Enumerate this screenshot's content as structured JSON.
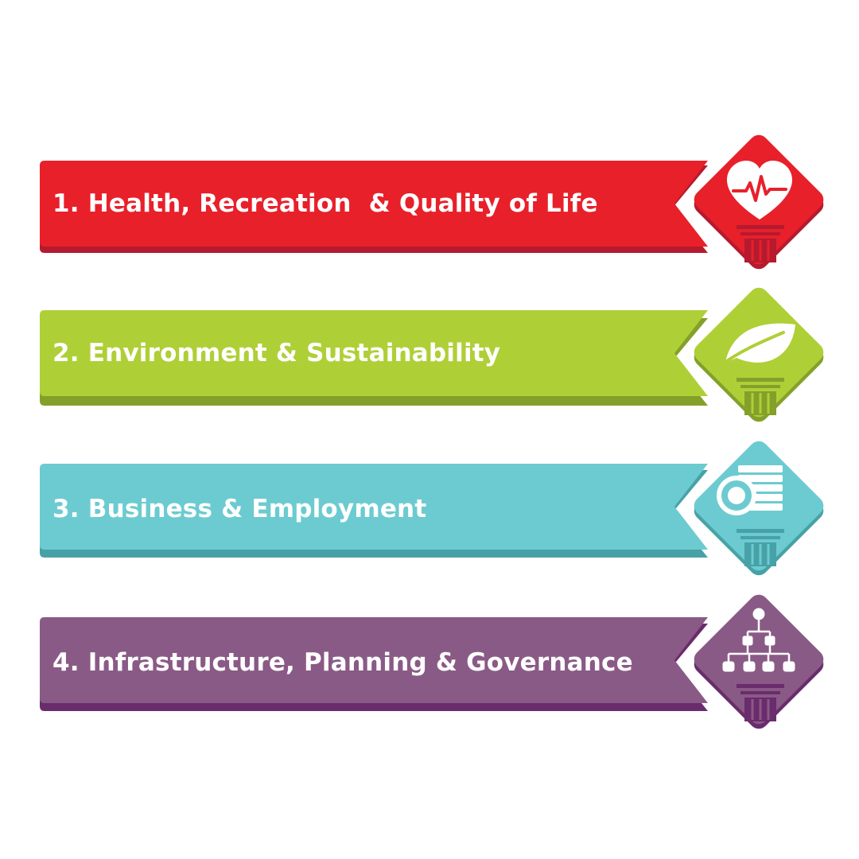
{
  "pillars": [
    {
      "label": "1. Health, Recreation  & Quality of Life",
      "icon": "heart-pulse-icon",
      "color": "#e8202a",
      "dark": "#b51a2e"
    },
    {
      "label": "2. Environment & Sustainability",
      "icon": "leaf-icon",
      "color": "#afcf37",
      "dark": "#84a02a"
    },
    {
      "label": "3. Business & Employment",
      "icon": "coins-icon",
      "color": "#6ccbd0",
      "dark": "#47a2a7"
    },
    {
      "label": "4. Infrastructure, Planning & Governance",
      "icon": "org-chart-icon",
      "color": "#8a5a86",
      "dark": "#6a2c6c"
    }
  ]
}
